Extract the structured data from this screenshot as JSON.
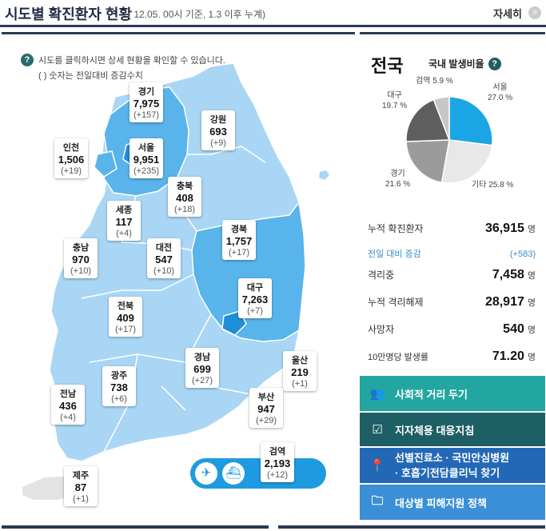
{
  "header": {
    "title": "시도별 확진환자 현황",
    "subtitle": "( 12.05. 00시 기준, 1.3 이후 누계)",
    "more_label": "자세히",
    "more_icon": ">"
  },
  "map": {
    "note1": "시도를 클릭하시면 상세 현황을 확인할 수 있습니다.",
    "note2": "( ) 숫자는 전일대비 증감수치",
    "help_icon": "?",
    "regions": [
      {
        "name": "경기",
        "count": "7,975",
        "inc": "(+157)"
      },
      {
        "name": "강원",
        "count": "693",
        "inc": "(+9)"
      },
      {
        "name": "인천",
        "count": "1,506",
        "inc": "(+19)"
      },
      {
        "name": "서울",
        "count": "9,951",
        "inc": "(+235)"
      },
      {
        "name": "충북",
        "count": "408",
        "inc": "(+18)"
      },
      {
        "name": "세종",
        "count": "117",
        "inc": "(+4)"
      },
      {
        "name": "충남",
        "count": "970",
        "inc": "(+10)"
      },
      {
        "name": "대전",
        "count": "547",
        "inc": "(+10)"
      },
      {
        "name": "경북",
        "count": "1,757",
        "inc": "(+17)"
      },
      {
        "name": "대구",
        "count": "7,263",
        "inc": "(+7)"
      },
      {
        "name": "전북",
        "count": "409",
        "inc": "(+17)"
      },
      {
        "name": "경남",
        "count": "699",
        "inc": "(+27)"
      },
      {
        "name": "울산",
        "count": "219",
        "inc": "(+1)"
      },
      {
        "name": "광주",
        "count": "738",
        "inc": "(+6)"
      },
      {
        "name": "부산",
        "count": "947",
        "inc": "(+29)"
      },
      {
        "name": "전남",
        "count": "436",
        "inc": "(+4)"
      },
      {
        "name": "검역",
        "count": "2,193",
        "inc": "(+12)"
      },
      {
        "name": "제주",
        "count": "87",
        "inc": "(+1)"
      }
    ],
    "transport_icons": [
      "airplane-icon",
      "ship-icon"
    ],
    "colors": {
      "land_light": "#a9d6f5",
      "land_mid": "#58b4eb",
      "land_dark": "#1e8ed8",
      "jeju": "#e3e3e3",
      "accent": "#1e9be0"
    }
  },
  "stats": {
    "nation_label": "전국",
    "ratio_title": "국내 발생비율",
    "pie": [
      {
        "name": "서울",
        "pct": "27.0 %",
        "value": 27.0,
        "color": "#1aa6e4"
      },
      {
        "name": "기타",
        "pct": "25.8 %",
        "value": 25.8,
        "color": "#e8e8e8"
      },
      {
        "name": "경기",
        "pct": "21.6 %",
        "value": 21.6,
        "color": "#9b9b9b"
      },
      {
        "name": "대구",
        "pct": "19.7 %",
        "value": 19.7,
        "color": "#5e5e5e"
      },
      {
        "name": "검역",
        "pct": "5.9 %",
        "value": 5.9,
        "color": "#c7c7c7"
      }
    ],
    "rows": [
      {
        "label": "누적 확진환자",
        "value": "36,915",
        "unit": "명"
      },
      {
        "label": "전일 대비 증감",
        "value": "(+583)",
        "unit": ""
      },
      {
        "label": "격리중",
        "value": "7,458",
        "unit": "명"
      },
      {
        "label": "누적 격리해제",
        "value": "28,917",
        "unit": "명"
      },
      {
        "label": "사망자",
        "value": "540",
        "unit": "명"
      },
      {
        "label": "10만명당 발생률",
        "value": "71.20",
        "unit": "명"
      }
    ]
  },
  "buttons": {
    "distancing": "사회적 거리 두기",
    "guideline": "지자체용 대응지침",
    "clinic_line1": "선별진료소 · 국민안심병원",
    "clinic_line2": "· 호흡기전담클리닉 찾기",
    "support": "대상별 피해지원 정책",
    "colors": {
      "teal": "#23a6a0",
      "dark_teal": "#1d5f64",
      "blue": "#2368b6",
      "light_blue": "#3b8fd6"
    }
  }
}
